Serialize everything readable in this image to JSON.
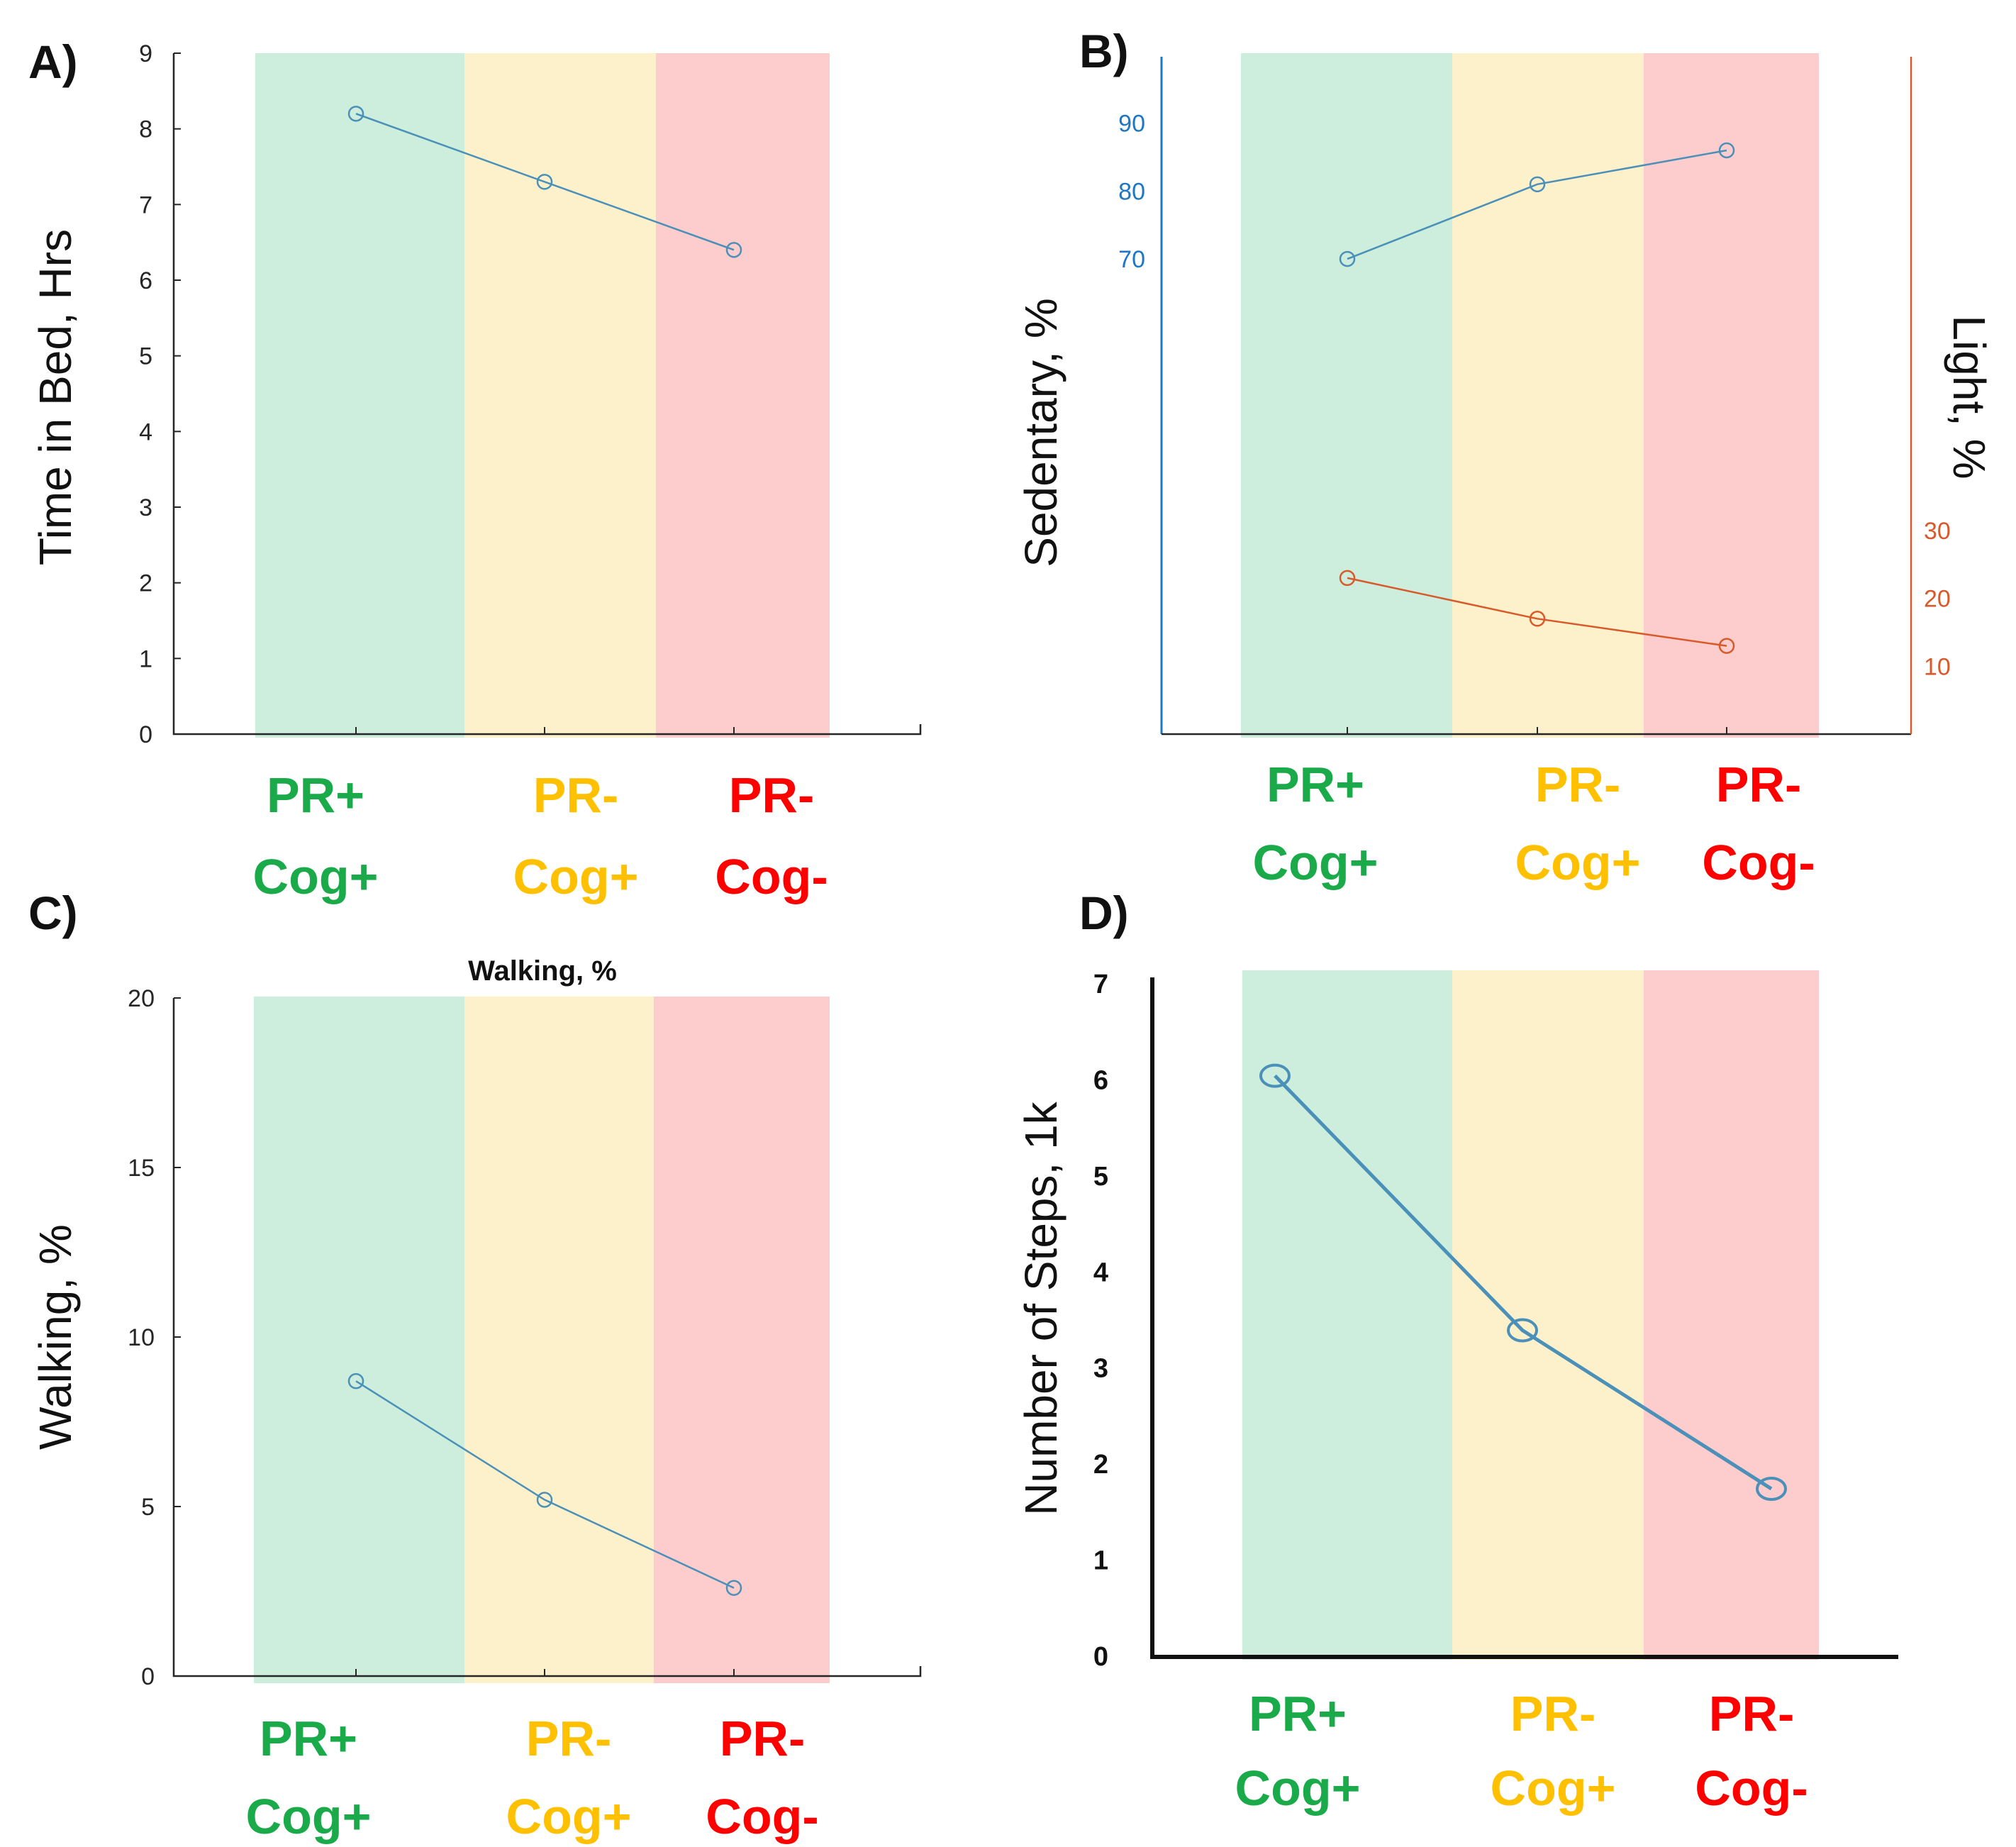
{
  "colors": {
    "green_band": "#cdeedd",
    "yellow_band": "#fdf1cb",
    "red_band": "#fdcccc",
    "green_text": "#1aaa4a",
    "yellow_text": "#ffc000",
    "red_text": "#ff0000",
    "line_blue": "#4a90b8",
    "axis_blue": "#1f77c4",
    "line_orange": "#d85a2a"
  },
  "chart_data": [
    {
      "id": "A",
      "panel_label": "A)",
      "type": "line",
      "title": "",
      "ylabel": "Time in Bed, Hrs",
      "categories": [
        "PR+ Cog+",
        "PR- Cog+",
        "PR- Cog-"
      ],
      "category_lines": [
        [
          "PR+",
          "Cog+"
        ],
        [
          "PR-",
          "Cog+"
        ],
        [
          "PR-",
          "Cog-"
        ]
      ],
      "ylim": [
        0,
        9
      ],
      "yticks": [
        0,
        1,
        2,
        3,
        4,
        5,
        6,
        7,
        8,
        9
      ],
      "series": [
        {
          "name": "Time in Bed",
          "values": [
            8.2,
            7.3,
            6.4
          ]
        }
      ]
    },
    {
      "id": "B",
      "panel_label": "B)",
      "type": "line",
      "title": "",
      "ylabel": "Sedentary, %",
      "ylabel_right": "Light, %",
      "categories": [
        "PR+ Cog+",
        "PR- Cog+",
        "PR- Cog-"
      ],
      "category_lines": [
        [
          "PR+",
          "Cog+"
        ],
        [
          "PR-",
          "Cog+"
        ],
        [
          "PR-",
          "Cog-"
        ]
      ],
      "ylim": [
        0,
        100
      ],
      "yticks": [
        70,
        80,
        90
      ],
      "ylim_right": [
        0,
        100
      ],
      "yticks_right": [
        10,
        20,
        30
      ],
      "series": [
        {
          "name": "Sedentary",
          "axis": "left",
          "values": [
            70,
            81,
            86
          ]
        },
        {
          "name": "Light",
          "axis": "right",
          "values": [
            23,
            17,
            13
          ]
        }
      ]
    },
    {
      "id": "C",
      "panel_label": "C)",
      "type": "line",
      "title": "Walking, %",
      "ylabel": "Walking, %",
      "categories": [
        "PR+ Cog+",
        "PR- Cog+",
        "PR- Cog-"
      ],
      "category_lines": [
        [
          "PR+",
          "Cog+"
        ],
        [
          "PR-",
          "Cog+"
        ],
        [
          "PR-",
          "Cog-"
        ]
      ],
      "ylim": [
        0,
        20
      ],
      "yticks": [
        0,
        5,
        10,
        15,
        20
      ],
      "series": [
        {
          "name": "Walking",
          "values": [
            8.7,
            5.2,
            2.6
          ]
        }
      ]
    },
    {
      "id": "D",
      "panel_label": "D)",
      "type": "line",
      "title": "",
      "ylabel": "Number of Steps,  1k",
      "categories": [
        "PR+ Cog+",
        "PR- Cog+",
        "PR- Cog-"
      ],
      "category_lines": [
        [
          "PR+",
          "Cog+"
        ],
        [
          "PR-",
          "Cog+"
        ],
        [
          "PR-",
          "Cog-"
        ]
      ],
      "ylim": [
        0,
        7
      ],
      "yticks": [
        0,
        1,
        2,
        3,
        4,
        5,
        6,
        7
      ],
      "series": [
        {
          "name": "Number of Steps",
          "values": [
            6.05,
            3.4,
            1.75
          ]
        }
      ]
    }
  ]
}
